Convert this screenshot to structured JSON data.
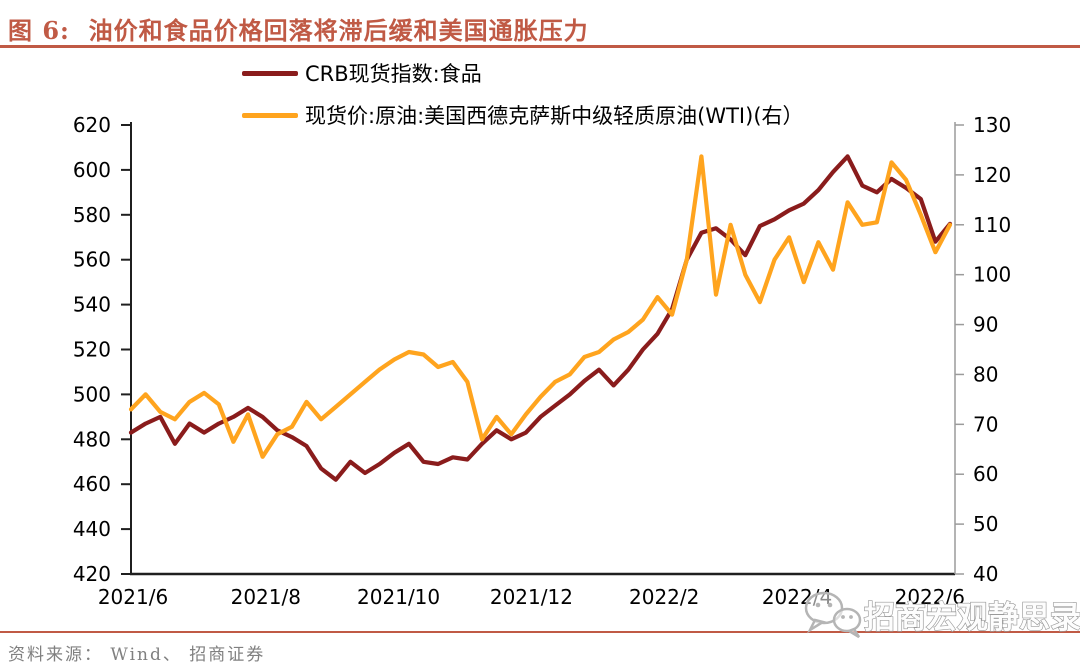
{
  "title": "图 6:  油价和食品价格回落将滞后缓和美国通胀压力",
  "source": "资料来源： Wind、 招商证券",
  "watermark": {
    "text": "招商宏观静思录",
    "icon": "wechat-icon"
  },
  "colors": {
    "accent_rule": "#c05a45",
    "crb_line": "#8a1c1c",
    "wti_line": "#ffa41e",
    "axis_left": "#1f1f1f",
    "axis_right": "#9b9b9b",
    "source_text": "#808080"
  },
  "chart_data": {
    "type": "line",
    "legend_position": "top",
    "grid": false,
    "x_tick_labels": [
      "2021/6",
      "2021/8",
      "2021/10",
      "2021/12",
      "2022/2",
      "2022/4",
      "2022/6"
    ],
    "left_axis": {
      "range": [
        420,
        620
      ],
      "ticks": [
        620,
        600,
        580,
        560,
        540,
        520,
        500,
        480,
        460,
        440,
        420
      ]
    },
    "right_axis": {
      "range": [
        40,
        130
      ],
      "ticks": [
        130,
        120,
        110,
        100,
        90,
        80,
        70,
        60,
        50,
        40
      ]
    },
    "x": [
      "2021-05-31",
      "2021-06-07",
      "2021-06-14",
      "2021-06-21",
      "2021-06-28",
      "2021-07-05",
      "2021-07-12",
      "2021-07-19",
      "2021-07-26",
      "2021-08-02",
      "2021-08-09",
      "2021-08-16",
      "2021-08-23",
      "2021-08-30",
      "2021-09-06",
      "2021-09-13",
      "2021-09-20",
      "2021-09-27",
      "2021-10-04",
      "2021-10-11",
      "2021-10-18",
      "2021-10-25",
      "2021-11-01",
      "2021-11-08",
      "2021-11-15",
      "2021-11-22",
      "2021-11-29",
      "2021-12-06",
      "2021-12-13",
      "2021-12-20",
      "2021-12-27",
      "2022-01-03",
      "2022-01-10",
      "2022-01-17",
      "2022-01-24",
      "2022-01-31",
      "2022-02-07",
      "2022-02-14",
      "2022-02-21",
      "2022-02-28",
      "2022-03-07",
      "2022-03-14",
      "2022-03-21",
      "2022-03-28",
      "2022-04-04",
      "2022-04-11",
      "2022-04-18",
      "2022-04-25",
      "2022-05-02",
      "2022-05-09",
      "2022-05-16",
      "2022-05-23",
      "2022-05-30",
      "2022-06-06",
      "2022-06-13",
      "2022-06-20",
      "2022-06-27"
    ],
    "series": [
      {
        "name": "CRB现货指数:食品",
        "axis": "left",
        "color": "#8a1c1c",
        "values": [
          483,
          487,
          490,
          478,
          487,
          483,
          487,
          490,
          494,
          490,
          484,
          481,
          477,
          467,
          462,
          470,
          465,
          469,
          474,
          478,
          470,
          469,
          472,
          471,
          478,
          484,
          480,
          483,
          490,
          495,
          500,
          506,
          511,
          504,
          511,
          520,
          527,
          538,
          560,
          572,
          574,
          569,
          562,
          575,
          578,
          582,
          585,
          591,
          599,
          606,
          593,
          590,
          596,
          592,
          587,
          568,
          576
        ]
      },
      {
        "name": "现货价:原油:美国西德克萨斯中级轻质原油(WTI)(右）",
        "axis": "right",
        "color": "#ffa41e",
        "values": [
          73,
          76,
          72.5,
          71,
          74.5,
          76.3,
          74,
          66.5,
          72,
          63.5,
          68,
          69.5,
          74.5,
          71,
          73.5,
          76,
          78.5,
          81,
          83,
          84.5,
          84,
          81.5,
          82.5,
          78.5,
          67,
          71.5,
          68,
          72,
          75.5,
          78.5,
          80,
          83.5,
          84.5,
          87,
          88.5,
          91,
          95.5,
          92,
          103,
          123.7,
          96,
          110,
          100,
          94.5,
          103,
          107.5,
          98.5,
          106.5,
          101,
          114.5,
          110,
          110.5,
          122.5,
          119,
          112,
          104.5,
          110
        ]
      }
    ]
  }
}
